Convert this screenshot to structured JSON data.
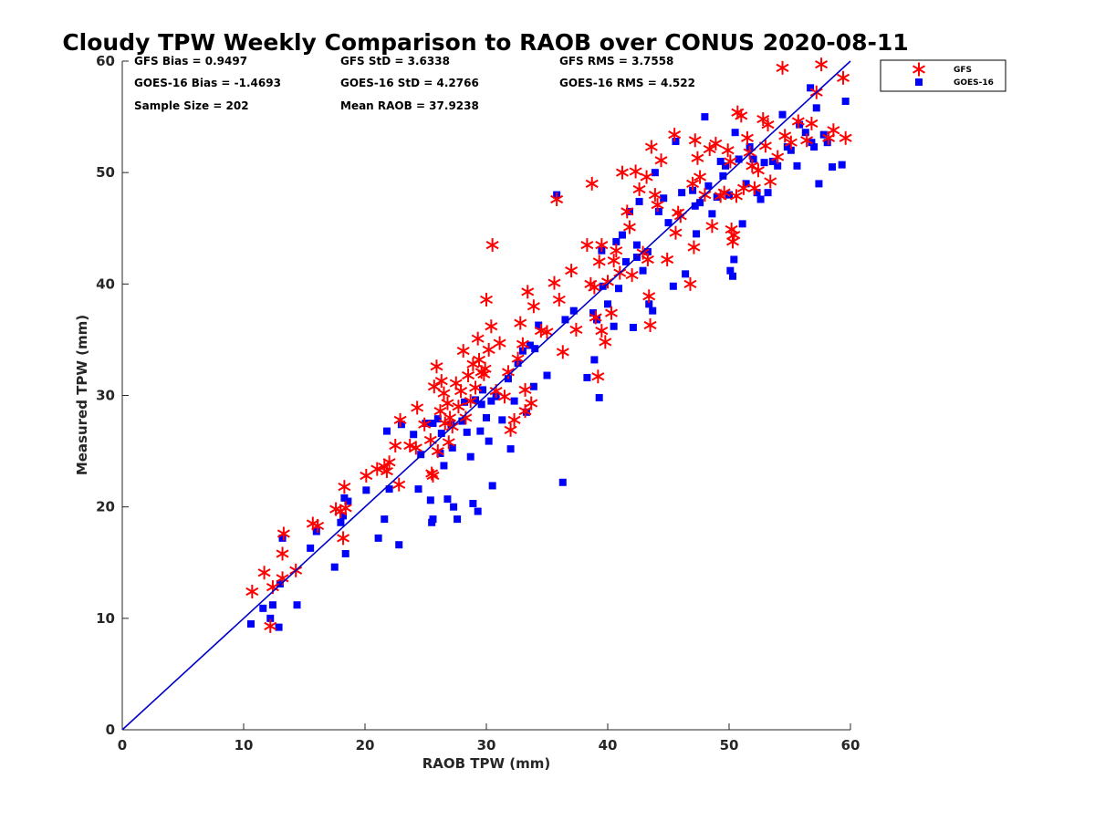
{
  "chart_data": {
    "type": "scatter",
    "title": "Cloudy TPW Weekly Comparison to RAOB over CONUS 2020-08-11",
    "xlabel": "RAOB TPW (mm)",
    "ylabel": "Measured TPW (mm)",
    "xlim": [
      0,
      60
    ],
    "ylim": [
      0,
      60
    ],
    "xticks": [
      "0",
      "10",
      "20",
      "30",
      "40",
      "50",
      "60"
    ],
    "yticks": [
      "0",
      "10",
      "20",
      "30",
      "40",
      "50",
      "60"
    ],
    "grid": false,
    "legend_position": "outside top-right",
    "stats": [
      "GFS Bias = 0.9497",
      "GFS StD = 3.6338",
      "GFS RMS = 3.7558",
      "GOES-16 Bias = -1.4693",
      "GOES-16 StD = 4.2766",
      "GOES-16 RMS = 4.522",
      "Sample Size = 202",
      "Mean RAOB = 37.9238"
    ],
    "reference_line": {
      "x": [
        0,
        60
      ],
      "y": [
        0,
        60
      ],
      "color": "#0000cc"
    },
    "series": [
      {
        "name": "GFS",
        "marker": "asterisk",
        "color": "#ff0000",
        "points": [
          [
            10.7,
            12.4
          ],
          [
            11.7,
            14.1
          ],
          [
            12.2,
            9.3
          ],
          [
            12.4,
            12.8
          ],
          [
            13.2,
            13.6
          ],
          [
            13.2,
            15.8
          ],
          [
            13.3,
            17.6
          ],
          [
            14.3,
            14.3
          ],
          [
            15.7,
            18.5
          ],
          [
            16.1,
            18.3
          ],
          [
            17.6,
            19.8
          ],
          [
            18.0,
            19.6
          ],
          [
            18.2,
            17.2
          ],
          [
            18.3,
            21.8
          ],
          [
            18.4,
            19.9
          ],
          [
            20.1,
            22.8
          ],
          [
            21.0,
            23.4
          ],
          [
            21.6,
            23.6
          ],
          [
            21.8,
            23.2
          ],
          [
            22.0,
            24.0
          ],
          [
            22.5,
            25.5
          ],
          [
            22.8,
            22.0
          ],
          [
            22.9,
            27.8
          ],
          [
            23.7,
            25.5
          ],
          [
            24.2,
            25.3
          ],
          [
            24.3,
            28.9
          ],
          [
            24.9,
            27.4
          ],
          [
            25.4,
            26.0
          ],
          [
            25.5,
            23.0
          ],
          [
            25.6,
            22.8
          ],
          [
            25.7,
            30.8
          ],
          [
            25.9,
            32.6
          ],
          [
            26.0,
            25.0
          ],
          [
            26.2,
            28.6
          ],
          [
            26.3,
            31.3
          ],
          [
            26.5,
            30.2
          ],
          [
            26.6,
            27.5
          ],
          [
            26.8,
            29.3
          ],
          [
            26.9,
            25.8
          ],
          [
            27.0,
            28.0
          ],
          [
            27.2,
            27.2
          ],
          [
            27.5,
            31.1
          ],
          [
            27.7,
            29.0
          ],
          [
            27.9,
            30.4
          ],
          [
            28.1,
            34.0
          ],
          [
            28.3,
            28.0
          ],
          [
            28.5,
            31.8
          ],
          [
            28.7,
            29.5
          ],
          [
            28.9,
            32.8
          ],
          [
            29.1,
            30.7
          ],
          [
            29.3,
            35.1
          ],
          [
            29.4,
            33.2
          ],
          [
            29.6,
            32.1
          ],
          [
            29.8,
            31.9
          ],
          [
            29.9,
            32.4
          ],
          [
            30.0,
            38.6
          ],
          [
            30.2,
            34.1
          ],
          [
            30.4,
            36.2
          ],
          [
            30.5,
            43.5
          ],
          [
            30.8,
            30.4
          ],
          [
            31.1,
            34.7
          ],
          [
            31.5,
            29.9
          ],
          [
            32.0,
            26.9
          ],
          [
            32.3,
            27.8
          ],
          [
            32.6,
            33.3
          ],
          [
            32.8,
            36.5
          ],
          [
            33.0,
            34.6
          ],
          [
            33.2,
            28.6
          ],
          [
            33.4,
            39.3
          ],
          [
            33.7,
            29.3
          ],
          [
            33.9,
            38.0
          ],
          [
            34.5,
            35.8
          ],
          [
            35.0,
            35.7
          ],
          [
            35.6,
            40.1
          ],
          [
            35.8,
            47.6
          ],
          [
            36.0,
            38.6
          ],
          [
            36.3,
            33.9
          ],
          [
            37.0,
            41.2
          ],
          [
            37.4,
            35.9
          ],
          [
            38.3,
            43.5
          ],
          [
            38.6,
            40.0
          ],
          [
            38.7,
            49.0
          ],
          [
            38.9,
            39.7
          ],
          [
            39.0,
            37.0
          ],
          [
            39.2,
            31.7
          ],
          [
            39.3,
            42.0
          ],
          [
            39.5,
            43.5
          ],
          [
            39.5,
            35.8
          ],
          [
            39.8,
            34.8
          ],
          [
            40.0,
            40.2
          ],
          [
            40.3,
            37.4
          ],
          [
            40.5,
            42.1
          ],
          [
            40.7,
            43.0
          ],
          [
            41.0,
            41.0
          ],
          [
            41.2,
            50.0
          ],
          [
            41.6,
            46.5
          ],
          [
            41.8,
            45.1
          ],
          [
            42.0,
            40.8
          ],
          [
            42.3,
            50.1
          ],
          [
            42.6,
            48.5
          ],
          [
            42.9,
            42.8
          ],
          [
            43.2,
            49.6
          ],
          [
            43.3,
            42.2
          ],
          [
            43.4,
            38.9
          ],
          [
            43.5,
            36.3
          ],
          [
            43.6,
            52.3
          ],
          [
            43.9,
            48.0
          ],
          [
            44.1,
            47.1
          ],
          [
            44.4,
            51.1
          ],
          [
            44.9,
            42.2
          ],
          [
            45.5,
            53.4
          ],
          [
            45.6,
            44.6
          ],
          [
            45.8,
            46.4
          ],
          [
            46.0,
            46.1
          ],
          [
            46.8,
            40.0
          ],
          [
            47.0,
            49.0
          ],
          [
            47.1,
            43.3
          ],
          [
            47.2,
            52.9
          ],
          [
            47.4,
            51.3
          ],
          [
            47.6,
            49.6
          ],
          [
            48.0,
            48.0
          ],
          [
            48.4,
            52.1
          ],
          [
            48.6,
            45.2
          ],
          [
            48.9,
            52.6
          ],
          [
            49.3,
            47.9
          ],
          [
            49.6,
            48.2
          ],
          [
            49.9,
            52.0
          ],
          [
            50.1,
            51.0
          ],
          [
            50.2,
            44.9
          ],
          [
            50.3,
            43.8
          ],
          [
            50.4,
            44.4
          ],
          [
            50.6,
            47.9
          ],
          [
            50.7,
            55.4
          ],
          [
            51.0,
            55.1
          ],
          [
            51.2,
            48.6
          ],
          [
            51.5,
            53.1
          ],
          [
            51.7,
            51.8
          ],
          [
            51.9,
            50.6
          ],
          [
            52.1,
            48.6
          ],
          [
            52.4,
            50.2
          ],
          [
            52.8,
            54.8
          ],
          [
            53.0,
            52.4
          ],
          [
            53.2,
            54.3
          ],
          [
            53.4,
            49.2
          ],
          [
            54.0,
            51.4
          ],
          [
            54.4,
            59.4
          ],
          [
            54.6,
            53.3
          ],
          [
            55.1,
            52.7
          ],
          [
            55.7,
            54.6
          ],
          [
            56.4,
            52.9
          ],
          [
            56.8,
            54.4
          ],
          [
            57.2,
            57.2
          ],
          [
            57.6,
            59.7
          ],
          [
            58.2,
            53.1
          ],
          [
            58.6,
            53.8
          ],
          [
            59.4,
            58.5
          ],
          [
            59.6,
            53.1
          ],
          [
            33.2,
            30.5
          ],
          [
            31.8,
            32.1
          ]
        ]
      },
      {
        "name": "GOES-16",
        "marker": "square",
        "color": "#0000ff",
        "points": [
          [
            10.6,
            9.5
          ],
          [
            11.6,
            10.9
          ],
          [
            12.2,
            10.0
          ],
          [
            12.4,
            11.2
          ],
          [
            12.9,
            9.2
          ],
          [
            13.0,
            13.1
          ],
          [
            13.2,
            17.2
          ],
          [
            14.4,
            11.2
          ],
          [
            15.5,
            16.3
          ],
          [
            16.0,
            17.8
          ],
          [
            17.5,
            14.6
          ],
          [
            18.0,
            18.6
          ],
          [
            18.2,
            19.2
          ],
          [
            18.3,
            20.8
          ],
          [
            18.4,
            15.8
          ],
          [
            18.6,
            20.5
          ],
          [
            20.1,
            21.5
          ],
          [
            21.1,
            17.2
          ],
          [
            21.6,
            18.9
          ],
          [
            21.8,
            26.8
          ],
          [
            22.0,
            21.6
          ],
          [
            22.8,
            16.6
          ],
          [
            23.0,
            27.4
          ],
          [
            24.0,
            26.5
          ],
          [
            24.4,
            21.6
          ],
          [
            24.6,
            24.7
          ],
          [
            25.0,
            27.5
          ],
          [
            25.4,
            20.6
          ],
          [
            25.5,
            18.6
          ],
          [
            25.6,
            18.9
          ],
          [
            25.6,
            27.5
          ],
          [
            26.0,
            27.9
          ],
          [
            26.2,
            24.8
          ],
          [
            26.5,
            23.7
          ],
          [
            26.8,
            20.7
          ],
          [
            27.1,
            27.4
          ],
          [
            27.2,
            25.3
          ],
          [
            27.3,
            20.0
          ],
          [
            27.6,
            18.9
          ],
          [
            28.0,
            27.7
          ],
          [
            28.2,
            29.4
          ],
          [
            28.4,
            26.7
          ],
          [
            28.7,
            24.5
          ],
          [
            28.9,
            20.3
          ],
          [
            29.1,
            29.6
          ],
          [
            29.3,
            19.6
          ],
          [
            29.5,
            26.8
          ],
          [
            29.7,
            30.5
          ],
          [
            30.0,
            28.0
          ],
          [
            30.2,
            25.9
          ],
          [
            30.4,
            29.5
          ],
          [
            30.5,
            21.9
          ],
          [
            30.8,
            29.9
          ],
          [
            31.3,
            27.8
          ],
          [
            31.8,
            31.5
          ],
          [
            32.0,
            25.2
          ],
          [
            32.3,
            29.5
          ],
          [
            32.6,
            32.9
          ],
          [
            33.0,
            34.0
          ],
          [
            33.3,
            28.5
          ],
          [
            33.6,
            34.5
          ],
          [
            33.9,
            30.8
          ],
          [
            34.3,
            36.3
          ],
          [
            35.0,
            31.8
          ],
          [
            35.8,
            48.0
          ],
          [
            36.3,
            22.2
          ],
          [
            36.5,
            36.8
          ],
          [
            37.2,
            37.6
          ],
          [
            38.3,
            31.6
          ],
          [
            38.8,
            37.4
          ],
          [
            38.9,
            33.2
          ],
          [
            39.1,
            36.8
          ],
          [
            39.3,
            29.8
          ],
          [
            39.5,
            43.0
          ],
          [
            39.6,
            39.8
          ],
          [
            40.0,
            38.2
          ],
          [
            40.5,
            36.2
          ],
          [
            40.7,
            43.8
          ],
          [
            40.9,
            39.6
          ],
          [
            41.2,
            44.4
          ],
          [
            41.5,
            42.0
          ],
          [
            41.8,
            46.5
          ],
          [
            42.1,
            36.1
          ],
          [
            42.4,
            43.5
          ],
          [
            42.6,
            47.4
          ],
          [
            42.9,
            41.2
          ],
          [
            43.3,
            42.9
          ],
          [
            43.4,
            38.2
          ],
          [
            43.7,
            37.6
          ],
          [
            43.9,
            50.0
          ],
          [
            44.2,
            46.5
          ],
          [
            44.6,
            47.7
          ],
          [
            45.0,
            45.5
          ],
          [
            45.4,
            39.8
          ],
          [
            45.6,
            52.8
          ],
          [
            46.1,
            48.2
          ],
          [
            46.4,
            40.9
          ],
          [
            47.0,
            48.4
          ],
          [
            47.3,
            44.5
          ],
          [
            47.6,
            47.3
          ],
          [
            48.0,
            55.0
          ],
          [
            48.3,
            48.8
          ],
          [
            48.6,
            46.3
          ],
          [
            49.0,
            47.8
          ],
          [
            49.3,
            51.0
          ],
          [
            49.7,
            50.6
          ],
          [
            50.0,
            48.0
          ],
          [
            50.1,
            41.2
          ],
          [
            50.3,
            40.7
          ],
          [
            50.4,
            42.2
          ],
          [
            50.5,
            53.6
          ],
          [
            50.8,
            51.2
          ],
          [
            51.1,
            45.4
          ],
          [
            51.4,
            49.0
          ],
          [
            51.7,
            52.3
          ],
          [
            52.0,
            51.2
          ],
          [
            52.3,
            48.2
          ],
          [
            52.6,
            47.6
          ],
          [
            52.9,
            50.9
          ],
          [
            53.2,
            48.2
          ],
          [
            53.6,
            51.0
          ],
          [
            54.0,
            50.6
          ],
          [
            54.4,
            55.2
          ],
          [
            54.8,
            52.3
          ],
          [
            55.1,
            52.0
          ],
          [
            55.6,
            50.6
          ],
          [
            55.8,
            54.3
          ],
          [
            56.3,
            53.6
          ],
          [
            56.7,
            57.6
          ],
          [
            57.0,
            52.3
          ],
          [
            57.2,
            55.8
          ],
          [
            57.4,
            49.0
          ],
          [
            57.8,
            53.4
          ],
          [
            58.1,
            52.7
          ],
          [
            58.5,
            50.5
          ],
          [
            59.3,
            50.7
          ],
          [
            59.6,
            56.4
          ],
          [
            56.8,
            52.7
          ],
          [
            49.5,
            49.7
          ],
          [
            42.4,
            42.4
          ],
          [
            47.2,
            47.0
          ],
          [
            34.0,
            34.2
          ],
          [
            26.3,
            26.6
          ],
          [
            29.6,
            29.2
          ]
        ]
      }
    ]
  }
}
